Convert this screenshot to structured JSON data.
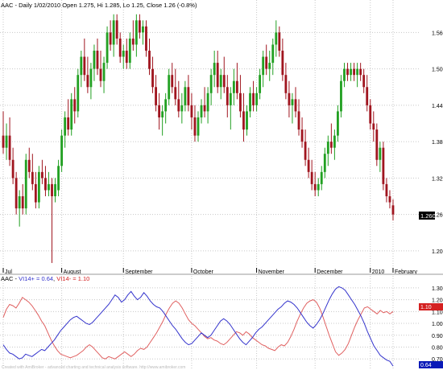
{
  "price_header": "AAC - Daily 1/02/2010 Open 1.275, Hi 1.285, Lo 1.25, Close 1.26 (-0.8%)",
  "indicator_header": {
    "prefix": "AAC - ",
    "plus_label": "VI14+ = 0.64",
    "separator": ", ",
    "minus_label": "VI14- = 1.10"
  },
  "footer_note": "Created with AmiBroker - advanced charting and technical analysis software. http://www.amibroker.com",
  "colors": {
    "up_candle": "#22a022",
    "down_candle": "#a0151f",
    "vi_plus": "#3333cc",
    "vi_minus": "#e06060",
    "grid": "#c8c8c8",
    "last_price_badge": "#000000",
    "vi_minus_badge": "#d42020",
    "vi_plus_badge": "#0a1ab8"
  },
  "chart_data": [
    {
      "type": "candlestick",
      "title": "AAC - Daily 1/02/2010 Open 1.275, Hi 1.285, Lo 1.25, Close 1.26 (-0.8%)",
      "y_ticks": [
        "1.560",
        "1.500",
        "1.440",
        "1.380",
        "1.320",
        "1.260",
        "1.200"
      ],
      "ylim": [
        1.168,
        1.595
      ],
      "x_ticks": [
        "Jul",
        "August",
        "September",
        "October",
        "November",
        "December",
        "2010",
        "February"
      ],
      "last_value": "1.260",
      "legend": "none",
      "grid": true,
      "candles": [
        {
          "o": 1.39,
          "h": 1.43,
          "l": 1.36,
          "c": 1.37
        },
        {
          "o": 1.37,
          "h": 1.41,
          "l": 1.35,
          "c": 1.39
        },
        {
          "o": 1.39,
          "h": 1.42,
          "l": 1.34,
          "c": 1.35
        },
        {
          "o": 1.35,
          "h": 1.37,
          "l": 1.31,
          "c": 1.32
        },
        {
          "o": 1.32,
          "h": 1.33,
          "l": 1.26,
          "c": 1.27
        },
        {
          "o": 1.27,
          "h": 1.3,
          "l": 1.24,
          "c": 1.29
        },
        {
          "o": 1.29,
          "h": 1.31,
          "l": 1.26,
          "c": 1.27
        },
        {
          "o": 1.27,
          "h": 1.36,
          "l": 1.26,
          "c": 1.35
        },
        {
          "o": 1.35,
          "h": 1.37,
          "l": 1.32,
          "c": 1.33
        },
        {
          "o": 1.33,
          "h": 1.36,
          "l": 1.3,
          "c": 1.31
        },
        {
          "o": 1.31,
          "h": 1.33,
          "l": 1.27,
          "c": 1.28
        },
        {
          "o": 1.28,
          "h": 1.34,
          "l": 1.27,
          "c": 1.33
        },
        {
          "o": 1.33,
          "h": 1.35,
          "l": 1.31,
          "c": 1.32
        },
        {
          "o": 1.32,
          "h": 1.34,
          "l": 1.29,
          "c": 1.3
        },
        {
          "o": 1.3,
          "h": 1.33,
          "l": 1.29,
          "c": 1.31
        },
        {
          "o": 1.31,
          "h": 1.32,
          "l": 1.18,
          "c": 1.29
        },
        {
          "o": 1.29,
          "h": 1.32,
          "l": 1.28,
          "c": 1.31
        },
        {
          "o": 1.3,
          "h": 1.35,
          "l": 1.29,
          "c": 1.34
        },
        {
          "o": 1.34,
          "h": 1.4,
          "l": 1.33,
          "c": 1.39
        },
        {
          "o": 1.39,
          "h": 1.43,
          "l": 1.37,
          "c": 1.42
        },
        {
          "o": 1.42,
          "h": 1.45,
          "l": 1.39,
          "c": 1.4
        },
        {
          "o": 1.4,
          "h": 1.46,
          "l": 1.39,
          "c": 1.45
        },
        {
          "o": 1.45,
          "h": 1.47,
          "l": 1.41,
          "c": 1.43
        },
        {
          "o": 1.43,
          "h": 1.5,
          "l": 1.42,
          "c": 1.49
        },
        {
          "o": 1.49,
          "h": 1.53,
          "l": 1.47,
          "c": 1.52
        },
        {
          "o": 1.52,
          "h": 1.55,
          "l": 1.48,
          "c": 1.49
        },
        {
          "o": 1.49,
          "h": 1.52,
          "l": 1.46,
          "c": 1.47
        },
        {
          "o": 1.47,
          "h": 1.51,
          "l": 1.45,
          "c": 1.5
        },
        {
          "o": 1.5,
          "h": 1.54,
          "l": 1.48,
          "c": 1.53
        },
        {
          "o": 1.53,
          "h": 1.55,
          "l": 1.49,
          "c": 1.5
        },
        {
          "o": 1.5,
          "h": 1.53,
          "l": 1.47,
          "c": 1.48
        },
        {
          "o": 1.48,
          "h": 1.52,
          "l": 1.46,
          "c": 1.51
        },
        {
          "o": 1.51,
          "h": 1.57,
          "l": 1.5,
          "c": 1.56
        },
        {
          "o": 1.56,
          "h": 1.58,
          "l": 1.53,
          "c": 1.54
        },
        {
          "o": 1.54,
          "h": 1.59,
          "l": 1.52,
          "c": 1.58
        },
        {
          "o": 1.58,
          "h": 1.59,
          "l": 1.54,
          "c": 1.55
        },
        {
          "o": 1.55,
          "h": 1.56,
          "l": 1.51,
          "c": 1.52
        },
        {
          "o": 1.52,
          "h": 1.54,
          "l": 1.5,
          "c": 1.53
        },
        {
          "o": 1.53,
          "h": 1.55,
          "l": 1.5,
          "c": 1.51
        },
        {
          "o": 1.51,
          "h": 1.56,
          "l": 1.5,
          "c": 1.55
        },
        {
          "o": 1.55,
          "h": 1.58,
          "l": 1.53,
          "c": 1.54
        },
        {
          "o": 1.54,
          "h": 1.59,
          "l": 1.52,
          "c": 1.58
        },
        {
          "o": 1.58,
          "h": 1.59,
          "l": 1.55,
          "c": 1.56
        },
        {
          "o": 1.56,
          "h": 1.58,
          "l": 1.54,
          "c": 1.57
        },
        {
          "o": 1.57,
          "h": 1.58,
          "l": 1.52,
          "c": 1.53
        },
        {
          "o": 1.53,
          "h": 1.55,
          "l": 1.49,
          "c": 1.5
        },
        {
          "o": 1.5,
          "h": 1.52,
          "l": 1.46,
          "c": 1.47
        },
        {
          "o": 1.47,
          "h": 1.49,
          "l": 1.43,
          "c": 1.44
        },
        {
          "o": 1.44,
          "h": 1.46,
          "l": 1.4,
          "c": 1.42
        },
        {
          "o": 1.42,
          "h": 1.44,
          "l": 1.39,
          "c": 1.43
        },
        {
          "o": 1.43,
          "h": 1.46,
          "l": 1.41,
          "c": 1.45
        },
        {
          "o": 1.45,
          "h": 1.5,
          "l": 1.44,
          "c": 1.49
        },
        {
          "o": 1.49,
          "h": 1.51,
          "l": 1.46,
          "c": 1.47
        },
        {
          "o": 1.47,
          "h": 1.5,
          "l": 1.44,
          "c": 1.45
        },
        {
          "o": 1.45,
          "h": 1.48,
          "l": 1.42,
          "c": 1.43
        },
        {
          "o": 1.43,
          "h": 1.46,
          "l": 1.41,
          "c": 1.44
        },
        {
          "o": 1.44,
          "h": 1.48,
          "l": 1.43,
          "c": 1.47
        },
        {
          "o": 1.47,
          "h": 1.49,
          "l": 1.43,
          "c": 1.44
        },
        {
          "o": 1.44,
          "h": 1.46,
          "l": 1.4,
          "c": 1.42
        },
        {
          "o": 1.42,
          "h": 1.44,
          "l": 1.38,
          "c": 1.39
        },
        {
          "o": 1.39,
          "h": 1.43,
          "l": 1.38,
          "c": 1.42
        },
        {
          "o": 1.42,
          "h": 1.45,
          "l": 1.41,
          "c": 1.44
        },
        {
          "o": 1.44,
          "h": 1.47,
          "l": 1.42,
          "c": 1.43
        },
        {
          "o": 1.43,
          "h": 1.47,
          "l": 1.41,
          "c": 1.46
        },
        {
          "o": 1.46,
          "h": 1.5,
          "l": 1.44,
          "c": 1.49
        },
        {
          "o": 1.49,
          "h": 1.53,
          "l": 1.47,
          "c": 1.51
        },
        {
          "o": 1.51,
          "h": 1.53,
          "l": 1.46,
          "c": 1.47
        },
        {
          "o": 1.47,
          "h": 1.5,
          "l": 1.45,
          "c": 1.49
        },
        {
          "o": 1.49,
          "h": 1.52,
          "l": 1.46,
          "c": 1.47
        },
        {
          "o": 1.47,
          "h": 1.49,
          "l": 1.42,
          "c": 1.44
        },
        {
          "o": 1.44,
          "h": 1.47,
          "l": 1.4,
          "c": 1.46
        },
        {
          "o": 1.46,
          "h": 1.5,
          "l": 1.44,
          "c": 1.48
        },
        {
          "o": 1.48,
          "h": 1.51,
          "l": 1.45,
          "c": 1.46
        },
        {
          "o": 1.46,
          "h": 1.49,
          "l": 1.42,
          "c": 1.43
        },
        {
          "o": 1.43,
          "h": 1.46,
          "l": 1.38,
          "c": 1.4
        },
        {
          "o": 1.4,
          "h": 1.44,
          "l": 1.39,
          "c": 1.43
        },
        {
          "o": 1.43,
          "h": 1.47,
          "l": 1.42,
          "c": 1.46
        },
        {
          "o": 1.46,
          "h": 1.48,
          "l": 1.43,
          "c": 1.44
        },
        {
          "o": 1.44,
          "h": 1.47,
          "l": 1.43,
          "c": 1.46
        },
        {
          "o": 1.46,
          "h": 1.5,
          "l": 1.45,
          "c": 1.49
        },
        {
          "o": 1.49,
          "h": 1.53,
          "l": 1.47,
          "c": 1.52
        },
        {
          "o": 1.52,
          "h": 1.54,
          "l": 1.49,
          "c": 1.5
        },
        {
          "o": 1.5,
          "h": 1.53,
          "l": 1.48,
          "c": 1.51
        },
        {
          "o": 1.51,
          "h": 1.55,
          "l": 1.49,
          "c": 1.54
        },
        {
          "o": 1.54,
          "h": 1.58,
          "l": 1.52,
          "c": 1.56
        },
        {
          "o": 1.56,
          "h": 1.57,
          "l": 1.52,
          "c": 1.53
        },
        {
          "o": 1.53,
          "h": 1.55,
          "l": 1.48,
          "c": 1.49
        },
        {
          "o": 1.49,
          "h": 1.51,
          "l": 1.45,
          "c": 1.46
        },
        {
          "o": 1.46,
          "h": 1.48,
          "l": 1.42,
          "c": 1.44
        },
        {
          "o": 1.44,
          "h": 1.46,
          "l": 1.41,
          "c": 1.45
        },
        {
          "o": 1.45,
          "h": 1.47,
          "l": 1.42,
          "c": 1.43
        },
        {
          "o": 1.43,
          "h": 1.45,
          "l": 1.39,
          "c": 1.4
        },
        {
          "o": 1.4,
          "h": 1.42,
          "l": 1.37,
          "c": 1.38
        },
        {
          "o": 1.38,
          "h": 1.4,
          "l": 1.34,
          "c": 1.35
        },
        {
          "o": 1.35,
          "h": 1.37,
          "l": 1.32,
          "c": 1.33
        },
        {
          "o": 1.33,
          "h": 1.35,
          "l": 1.3,
          "c": 1.31
        },
        {
          "o": 1.31,
          "h": 1.33,
          "l": 1.29,
          "c": 1.3
        },
        {
          "o": 1.3,
          "h": 1.32,
          "l": 1.29,
          "c": 1.31
        },
        {
          "o": 1.31,
          "h": 1.34,
          "l": 1.3,
          "c": 1.33
        },
        {
          "o": 1.33,
          "h": 1.37,
          "l": 1.32,
          "c": 1.36
        },
        {
          "o": 1.36,
          "h": 1.39,
          "l": 1.34,
          "c": 1.38
        },
        {
          "o": 1.38,
          "h": 1.41,
          "l": 1.36,
          "c": 1.37
        },
        {
          "o": 1.37,
          "h": 1.4,
          "l": 1.35,
          "c": 1.39
        },
        {
          "o": 1.39,
          "h": 1.44,
          "l": 1.38,
          "c": 1.43
        },
        {
          "o": 1.43,
          "h": 1.49,
          "l": 1.42,
          "c": 1.48
        },
        {
          "o": 1.48,
          "h": 1.51,
          "l": 1.47,
          "c": 1.5
        },
        {
          "o": 1.5,
          "h": 1.51,
          "l": 1.48,
          "c": 1.49
        },
        {
          "o": 1.49,
          "h": 1.51,
          "l": 1.48,
          "c": 1.5
        },
        {
          "o": 1.5,
          "h": 1.51,
          "l": 1.48,
          "c": 1.49
        },
        {
          "o": 1.49,
          "h": 1.51,
          "l": 1.47,
          "c": 1.5
        },
        {
          "o": 1.5,
          "h": 1.51,
          "l": 1.48,
          "c": 1.49
        },
        {
          "o": 1.49,
          "h": 1.5,
          "l": 1.46,
          "c": 1.47
        },
        {
          "o": 1.47,
          "h": 1.49,
          "l": 1.43,
          "c": 1.44
        },
        {
          "o": 1.44,
          "h": 1.45,
          "l": 1.4,
          "c": 1.41
        },
        {
          "o": 1.41,
          "h": 1.43,
          "l": 1.38,
          "c": 1.4
        },
        {
          "o": 1.4,
          "h": 1.41,
          "l": 1.34,
          "c": 1.35
        },
        {
          "o": 1.35,
          "h": 1.38,
          "l": 1.33,
          "c": 1.37
        },
        {
          "o": 1.37,
          "h": 1.38,
          "l": 1.3,
          "c": 1.31
        },
        {
          "o": 1.31,
          "h": 1.32,
          "l": 1.28,
          "c": 1.29
        },
        {
          "o": 1.29,
          "h": 1.3,
          "l": 1.27,
          "c": 1.28
        },
        {
          "o": 1.275,
          "h": 1.285,
          "l": 1.25,
          "c": 1.26
        }
      ]
    },
    {
      "type": "line",
      "title": "AAC - VI14+ = 0.64, VI14- = 1.10",
      "y_ticks": [
        "1.300",
        "1.200",
        "1.100",
        "1.000",
        "0.900",
        "0.800",
        "0.700"
      ],
      "ylim": [
        0.62,
        1.34
      ],
      "last_values": [
        "1.10",
        "0.64"
      ],
      "legend": "none",
      "grid": true,
      "series": [
        {
          "name": "VI14+",
          "values": [
            0.82,
            0.78,
            0.75,
            0.74,
            0.72,
            0.7,
            0.71,
            0.74,
            0.73,
            0.72,
            0.74,
            0.76,
            0.78,
            0.77,
            0.8,
            0.83,
            0.86,
            0.9,
            0.94,
            0.97,
            1.0,
            1.03,
            1.05,
            1.06,
            1.04,
            1.02,
            1.0,
            0.99,
            1.01,
            1.04,
            1.07,
            1.1,
            1.13,
            1.16,
            1.2,
            1.24,
            1.22,
            1.18,
            1.2,
            1.24,
            1.27,
            1.23,
            1.2,
            1.22,
            1.26,
            1.23,
            1.19,
            1.16,
            1.14,
            1.13,
            1.1,
            1.06,
            1.02,
            0.98,
            0.95,
            0.91,
            0.87,
            0.84,
            0.82,
            0.83,
            0.86,
            0.89,
            0.92,
            0.9,
            0.88,
            0.9,
            0.94,
            0.98,
            1.02,
            1.04,
            1.02,
            0.99,
            0.95,
            0.91,
            0.87,
            0.84,
            0.82,
            0.85,
            0.88,
            0.92,
            0.95,
            0.97,
            1.0,
            1.03,
            1.06,
            1.09,
            1.12,
            1.14,
            1.17,
            1.19,
            1.18,
            1.16,
            1.13,
            1.09,
            1.05,
            1.01,
            0.98,
            0.96,
            0.99,
            1.03,
            1.08,
            1.14,
            1.2,
            1.25,
            1.29,
            1.31,
            1.3,
            1.28,
            1.24,
            1.2,
            1.16,
            1.11,
            1.06,
            1.0,
            0.93,
            0.87,
            0.81,
            0.77,
            0.73,
            0.71,
            0.69,
            0.68,
            0.64
          ]
        },
        {
          "name": "VI14-",
          "values": [
            1.05,
            1.12,
            1.16,
            1.15,
            1.13,
            1.17,
            1.22,
            1.2,
            1.18,
            1.15,
            1.11,
            1.07,
            1.02,
            0.98,
            0.92,
            0.86,
            0.81,
            0.77,
            0.74,
            0.73,
            0.72,
            0.71,
            0.72,
            0.73,
            0.75,
            0.77,
            0.8,
            0.82,
            0.8,
            0.77,
            0.74,
            0.71,
            0.7,
            0.72,
            0.71,
            0.7,
            0.72,
            0.74,
            0.76,
            0.74,
            0.72,
            0.74,
            0.77,
            0.79,
            0.78,
            0.8,
            0.84,
            0.88,
            0.92,
            0.97,
            1.02,
            1.08,
            1.13,
            1.17,
            1.19,
            1.17,
            1.13,
            1.08,
            1.03,
            1.0,
            0.98,
            0.95,
            0.92,
            0.89,
            0.87,
            0.88,
            0.86,
            0.85,
            0.83,
            0.82,
            0.84,
            0.87,
            0.9,
            0.93,
            0.92,
            0.9,
            0.93,
            0.91,
            0.88,
            0.86,
            0.84,
            0.82,
            0.81,
            0.79,
            0.78,
            0.77,
            0.8,
            0.82,
            0.81,
            0.84,
            0.89,
            0.95,
            1.02,
            1.08,
            1.13,
            1.17,
            1.19,
            1.2,
            1.18,
            1.13,
            1.06,
            0.98,
            0.9,
            0.83,
            0.76,
            0.73,
            0.75,
            0.78,
            0.83,
            0.9,
            0.97,
            1.03,
            1.08,
            1.13,
            1.14,
            1.12,
            1.1,
            1.08,
            1.11,
            1.09,
            1.1,
            1.08,
            1.1
          ]
        }
      ]
    }
  ]
}
